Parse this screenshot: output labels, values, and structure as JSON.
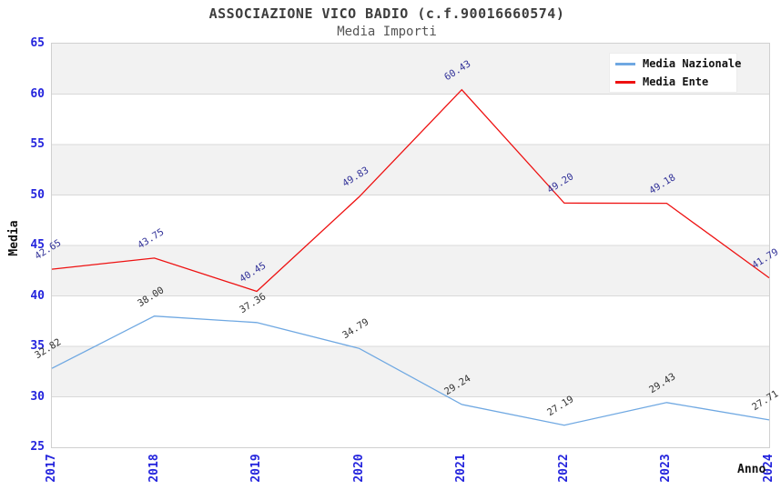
{
  "chart_data": {
    "type": "line",
    "title": "ASSOCIAZIONE VICO BADIO (c.f.90016660574)",
    "subtitle": "Media Importi",
    "xlabel": "Anno",
    "ylabel": "Media",
    "categories": [
      "2017",
      "2018",
      "2019",
      "2020",
      "2021",
      "2022",
      "2023",
      "2024"
    ],
    "ylim": [
      25,
      65
    ],
    "ytick_step": 5,
    "grid": true,
    "legend_position": "top-right",
    "series": [
      {
        "name": "Media Nazionale",
        "color": "#6fa8e2",
        "label_color": "#333333",
        "values": [
          32.82,
          38.0,
          37.36,
          34.79,
          29.24,
          27.19,
          29.43,
          27.71
        ]
      },
      {
        "name": "Media Ente",
        "color": "#ee1111",
        "label_color": "#333399",
        "values": [
          42.65,
          43.75,
          40.45,
          49.83,
          60.43,
          49.2,
          49.18,
          41.79
        ]
      }
    ],
    "colors": {
      "axis_tick_label": "#2424dd",
      "band_fill": "#f2f2f2",
      "gridline": "#d9d9d9",
      "plot_border": "#d0d0d0",
      "title": "#3d3d3d",
      "subtitle": "#555555"
    }
  }
}
